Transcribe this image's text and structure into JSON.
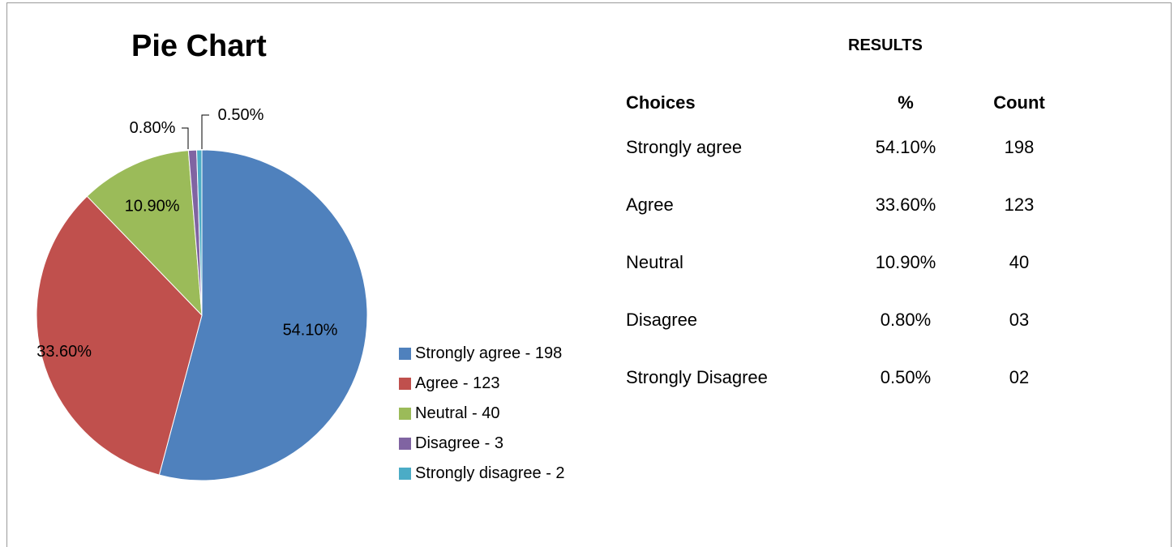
{
  "chart_data": {
    "type": "pie",
    "title": "Pie Chart",
    "slices": [
      {
        "label": "Strongly agree - 198",
        "value": 54.1,
        "data_label": "54.10%",
        "color": "#4F81BD"
      },
      {
        "label": "Agree - 123",
        "value": 33.6,
        "data_label": "33.60%",
        "color": "#C0504D"
      },
      {
        "label": "Neutral - 40",
        "value": 10.9,
        "data_label": "10.90%",
        "color": "#9BBB59"
      },
      {
        "label": "Disagree - 3",
        "value": 0.8,
        "data_label": "0.80%",
        "color": "#8064A2"
      },
      {
        "label": "Strongly disagree - 2",
        "value": 0.5,
        "data_label": "0.50%",
        "color": "#4BACC6"
      }
    ],
    "legend_position": "right"
  },
  "results": {
    "title": "RESULTS",
    "headers": {
      "choice": "Choices",
      "pct": "%",
      "count": "Count"
    },
    "rows": [
      {
        "choice": "Strongly agree",
        "pct": "54.10%",
        "count": "198"
      },
      {
        "choice": "Agree",
        "pct": "33.60%",
        "count": "123"
      },
      {
        "choice": "Neutral",
        "pct": "10.90%",
        "count": "40"
      },
      {
        "choice": "Disagree",
        "pct": "0.80%",
        "count": "03"
      },
      {
        "choice": "Strongly Disagree",
        "pct": "0.50%",
        "count": "02"
      }
    ]
  }
}
